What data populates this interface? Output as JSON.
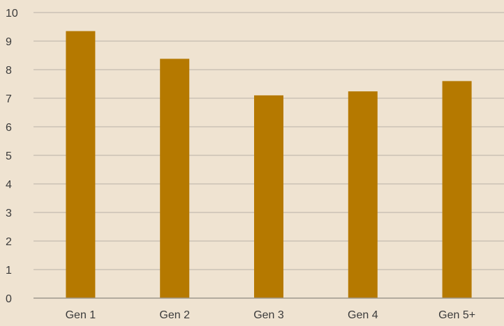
{
  "chart_data": {
    "type": "bar",
    "categories": [
      "Gen 1",
      "Gen 2",
      "Gen 3",
      "Gen 4",
      "Gen 5+"
    ],
    "values": [
      9.35,
      8.38,
      7.1,
      7.24,
      7.6
    ],
    "title": "",
    "xlabel": "",
    "ylabel": "",
    "ylim": [
      0,
      10
    ],
    "yticks": [
      0,
      1,
      2,
      3,
      4,
      5,
      6,
      7,
      8,
      9,
      10
    ],
    "grid": true,
    "legend": "none",
    "colors": {
      "bar": "#b57900",
      "background": "#efe3d1",
      "gridline": "#b9b2a8"
    }
  }
}
